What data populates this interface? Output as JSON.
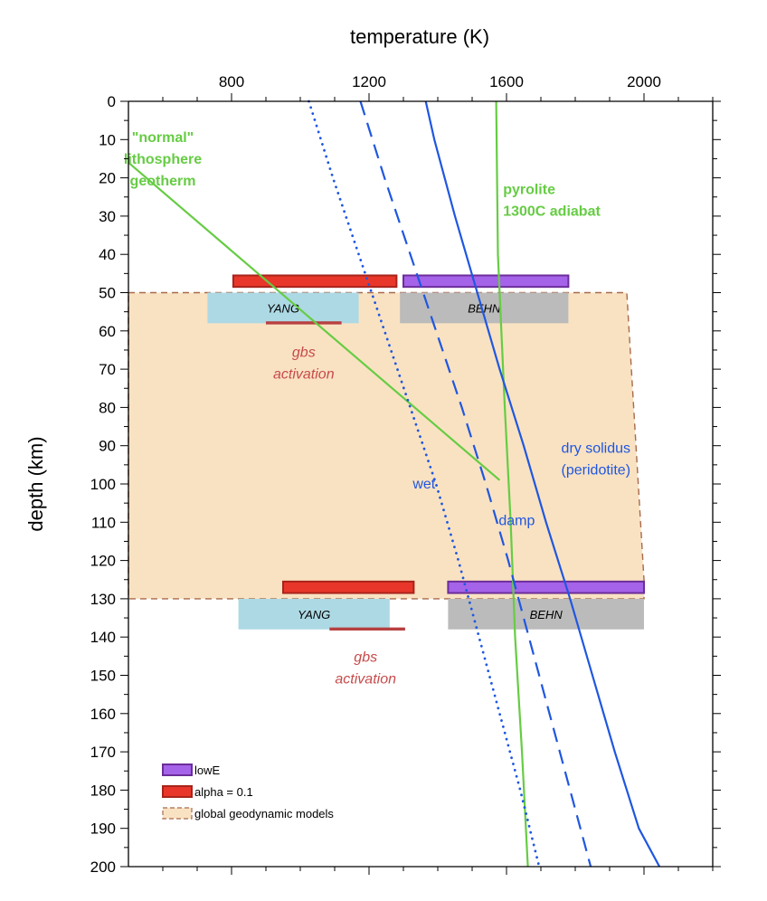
{
  "chart_data": {
    "type": "line",
    "xlabel": "temperature (K)",
    "ylabel": "depth (km)",
    "xlim": [
      500,
      2200
    ],
    "ylim": [
      0,
      200
    ],
    "x_ticks": [
      800,
      1200,
      1600,
      2000
    ],
    "y_ticks": [
      0,
      10,
      20,
      30,
      40,
      50,
      60,
      70,
      80,
      90,
      100,
      110,
      120,
      130,
      140,
      150,
      160,
      170,
      180,
      190,
      200
    ],
    "colors": {
      "green": "#66cc44",
      "blue": "#1f57e0",
      "red_fill": "#e8372a",
      "red_edge": "#a8231b",
      "purple_fill": "#a463e8",
      "purple_edge": "#6c2d9a",
      "yang_fill": "#add9e4",
      "behn_fill": "#bbbbbb",
      "gbs_bar": "#b84040",
      "gbs_text": "#c64b4b",
      "region_fill": "#f9e2c2",
      "region_edge": "#a86a4c"
    },
    "series": [
      {
        "name": "\"normal\" lithosphere geotherm",
        "style": "solid",
        "color": "green",
        "points": [
          [
            500,
            16
          ],
          [
            1580,
            99
          ]
        ]
      },
      {
        "name": "pyrolite 1300C adiabat",
        "style": "solid",
        "color": "green",
        "points": [
          [
            1570,
            0
          ],
          [
            1575,
            40
          ],
          [
            1595,
            80
          ],
          [
            1612,
            110
          ],
          [
            1625,
            140
          ],
          [
            1645,
            170
          ],
          [
            1662,
            200
          ]
        ]
      },
      {
        "name": "wet",
        "style": "dotted",
        "color": "blue",
        "points": [
          [
            1025,
            0
          ],
          [
            1095,
            20
          ],
          [
            1170,
            40
          ],
          [
            1245,
            60
          ],
          [
            1320,
            80
          ],
          [
            1395,
            100
          ],
          [
            1460,
            120
          ],
          [
            1520,
            140
          ],
          [
            1580,
            160
          ],
          [
            1640,
            180
          ],
          [
            1695,
            200
          ]
        ]
      },
      {
        "name": "damp",
        "style": "dashed",
        "color": "blue",
        "points": [
          [
            1175,
            0
          ],
          [
            1245,
            20
          ],
          [
            1320,
            40
          ],
          [
            1395,
            60
          ],
          [
            1470,
            80
          ],
          [
            1540,
            100
          ],
          [
            1605,
            120
          ],
          [
            1665,
            140
          ],
          [
            1725,
            160
          ],
          [
            1785,
            180
          ],
          [
            1845,
            200
          ]
        ]
      },
      {
        "name": "dry solidus (peridotite)",
        "style": "solid",
        "color": "blue",
        "points": [
          [
            1365,
            0
          ],
          [
            1390,
            10
          ],
          [
            1450,
            30
          ],
          [
            1515,
            50
          ],
          [
            1580,
            70
          ],
          [
            1650,
            90
          ],
          [
            1715,
            110
          ],
          [
            1785,
            130
          ],
          [
            1850,
            150
          ],
          [
            1915,
            170
          ],
          [
            1985,
            190
          ],
          [
            2045,
            200
          ]
        ]
      }
    ],
    "region": {
      "name": "global geodynamic models",
      "polygon": [
        [
          500,
          50
        ],
        [
          1950,
          50
        ],
        [
          2000,
          125
        ],
        [
          2000,
          130
        ],
        [
          500,
          130
        ]
      ]
    },
    "boxes": [
      {
        "name": "YANG",
        "type": "yang",
        "x0": 730,
        "x1": 1170,
        "y0": 50,
        "y1": 58,
        "label": "YANG"
      },
      {
        "name": "BEHN",
        "type": "behn",
        "x0": 1290,
        "x1": 1780,
        "y0": 50,
        "y1": 58,
        "label": "BEHN"
      },
      {
        "name": "YANG",
        "type": "yang",
        "x0": 820,
        "x1": 1260,
        "y0": 130,
        "y1": 138,
        "label": "YANG"
      },
      {
        "name": "BEHN",
        "type": "behn",
        "x0": 1430,
        "x1": 2000,
        "y0": 130,
        "y1": 138,
        "label": "BEHN"
      }
    ],
    "bars": [
      {
        "kind": "alpha",
        "x0": 805,
        "x1": 1280,
        "y0": 45.5,
        "y1": 48.5
      },
      {
        "kind": "lowE",
        "x0": 1300,
        "x1": 1780,
        "y0": 45.5,
        "y1": 48.5
      },
      {
        "kind": "alpha",
        "x0": 950,
        "x1": 1330,
        "y0": 125.5,
        "y1": 128.5
      },
      {
        "kind": "lowE",
        "x0": 1430,
        "x1": 2000,
        "y0": 125.5,
        "y1": 128.5
      },
      {
        "kind": "gbs",
        "x0": 900,
        "x1": 1120,
        "y0": 57.5,
        "y1": 58.3
      },
      {
        "kind": "gbs",
        "x0": 1085,
        "x1": 1305,
        "y0": 137.5,
        "y1": 138.3
      }
    ],
    "annotations": [
      {
        "lines": [
          "\"normal\"",
          "lithosphere",
          "geotherm"
        ],
        "color": "green",
        "bold": true,
        "x": 600,
        "y": 10.6,
        "anchor": "middle"
      },
      {
        "lines": [
          "pyrolite",
          "1300C adiabat"
        ],
        "color": "green",
        "bold": true,
        "x": 1590,
        "y": 24.2,
        "anchor": "start"
      },
      {
        "lines": [
          "gbs",
          "activation"
        ],
        "color": "gbs_text",
        "italic": true,
        "x": 1010,
        "y": 66.8,
        "anchor": "middle"
      },
      {
        "lines": [
          "gbs",
          "activation"
        ],
        "color": "gbs_text",
        "italic": true,
        "x": 1190,
        "y": 146.5,
        "anchor": "middle"
      },
      {
        "lines": [
          "wet"
        ],
        "color": "blue",
        "x": 1360,
        "y": 101.2,
        "anchor": "middle"
      },
      {
        "lines": [
          "damp"
        ],
        "color": "blue",
        "x": 1630,
        "y": 110.8,
        "anchor": "middle"
      },
      {
        "lines": [
          "dry solidus",
          "(peridotite)"
        ],
        "color": "blue",
        "x": 1860,
        "y": 91.8,
        "anchor": "middle"
      }
    ],
    "legend": {
      "position": "bottom-left",
      "entries": [
        {
          "type": "lowE",
          "label": "lowE"
        },
        {
          "type": "alpha",
          "label": "alpha = 0.1"
        },
        {
          "type": "region",
          "label": "global geodynamic models"
        }
      ]
    }
  }
}
